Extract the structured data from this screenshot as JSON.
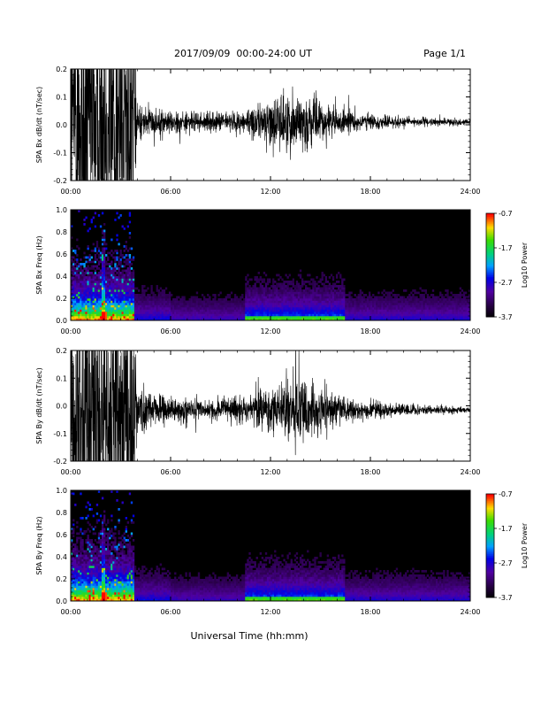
{
  "header": {
    "date_range": "2017/09/09  00:00-24:00 UT",
    "page": "Page 1/1"
  },
  "footer": {
    "xlabel": "Universal Time (hh:mm)"
  },
  "colorbar": {
    "ticks": [
      "-0.7",
      "-1.7",
      "-2.7",
      "-3.7"
    ],
    "label": "Log10 Power",
    "range": [
      -3.7,
      -0.7
    ]
  },
  "chart_data": [
    {
      "type": "line",
      "ylabel": "SPA Bx dB/dt (nT/sec)",
      "xlim": [
        0,
        24
      ],
      "ylim": [
        -0.2,
        0.2
      ],
      "x_ticks": [
        "00:00",
        "06:00",
        "12:00",
        "18:00",
        "24:00"
      ],
      "y_ticks": [
        "0.2",
        "0.1",
        "0.0",
        "-0.1",
        "-0.2"
      ],
      "envelope": {
        "hours": [
          0,
          1,
          2,
          2.5,
          3,
          3.7,
          4,
          5,
          6,
          8,
          10,
          11,
          12,
          13,
          14,
          15,
          16,
          18,
          20,
          22,
          24
        ],
        "amplitude": [
          0.5,
          0.5,
          0.5,
          0.5,
          0.5,
          0.5,
          0.06,
          0.045,
          0.04,
          0.03,
          0.035,
          0.05,
          0.08,
          0.1,
          0.09,
          0.07,
          0.045,
          0.025,
          0.018,
          0.012,
          0.01
        ]
      },
      "offset": 0.01
    },
    {
      "type": "heatmap",
      "ylabel": "SPA Bx Freq (Hz)",
      "xlim": [
        0,
        24
      ],
      "ylim": [
        0,
        1.0
      ],
      "x_ticks": [
        "00:00",
        "06:00",
        "12:00",
        "18:00",
        "24:00"
      ],
      "y_ticks": [
        "1.0",
        "0.8",
        "0.6",
        "0.4",
        "0.2",
        "0.0"
      ],
      "zlim": [
        -3.7,
        -0.7
      ]
    },
    {
      "type": "line",
      "ylabel": "SPA By dB/dt (nT/sec)",
      "xlim": [
        0,
        24
      ],
      "ylim": [
        -0.2,
        0.2
      ],
      "x_ticks": [
        "00:00",
        "06:00",
        "12:00",
        "18:00",
        "24:00"
      ],
      "y_ticks": [
        "0.2",
        "0.1",
        "0.0",
        "-0.1",
        "-0.2"
      ],
      "envelope": {
        "hours": [
          0,
          1,
          2,
          2.5,
          3,
          3.7,
          4,
          5,
          6,
          8,
          10,
          11,
          12,
          13,
          14,
          15,
          16,
          18,
          20,
          22,
          24
        ],
        "amplitude": [
          0.5,
          0.5,
          0.5,
          0.5,
          0.5,
          0.5,
          0.08,
          0.05,
          0.045,
          0.035,
          0.04,
          0.055,
          0.08,
          0.11,
          0.1,
          0.08,
          0.05,
          0.03,
          0.022,
          0.015,
          0.01
        ]
      },
      "offset": -0.015
    },
    {
      "type": "heatmap",
      "ylabel": "SPA By Freq (Hz)",
      "xlim": [
        0,
        24
      ],
      "ylim": [
        0,
        1.0
      ],
      "x_ticks": [
        "00:00",
        "06:00",
        "12:00",
        "18:00",
        "24:00"
      ],
      "y_ticks": [
        "1.0",
        "0.8",
        "0.6",
        "0.4",
        "0.2",
        "0.0"
      ],
      "zlim": [
        -3.7,
        -0.7
      ]
    }
  ]
}
